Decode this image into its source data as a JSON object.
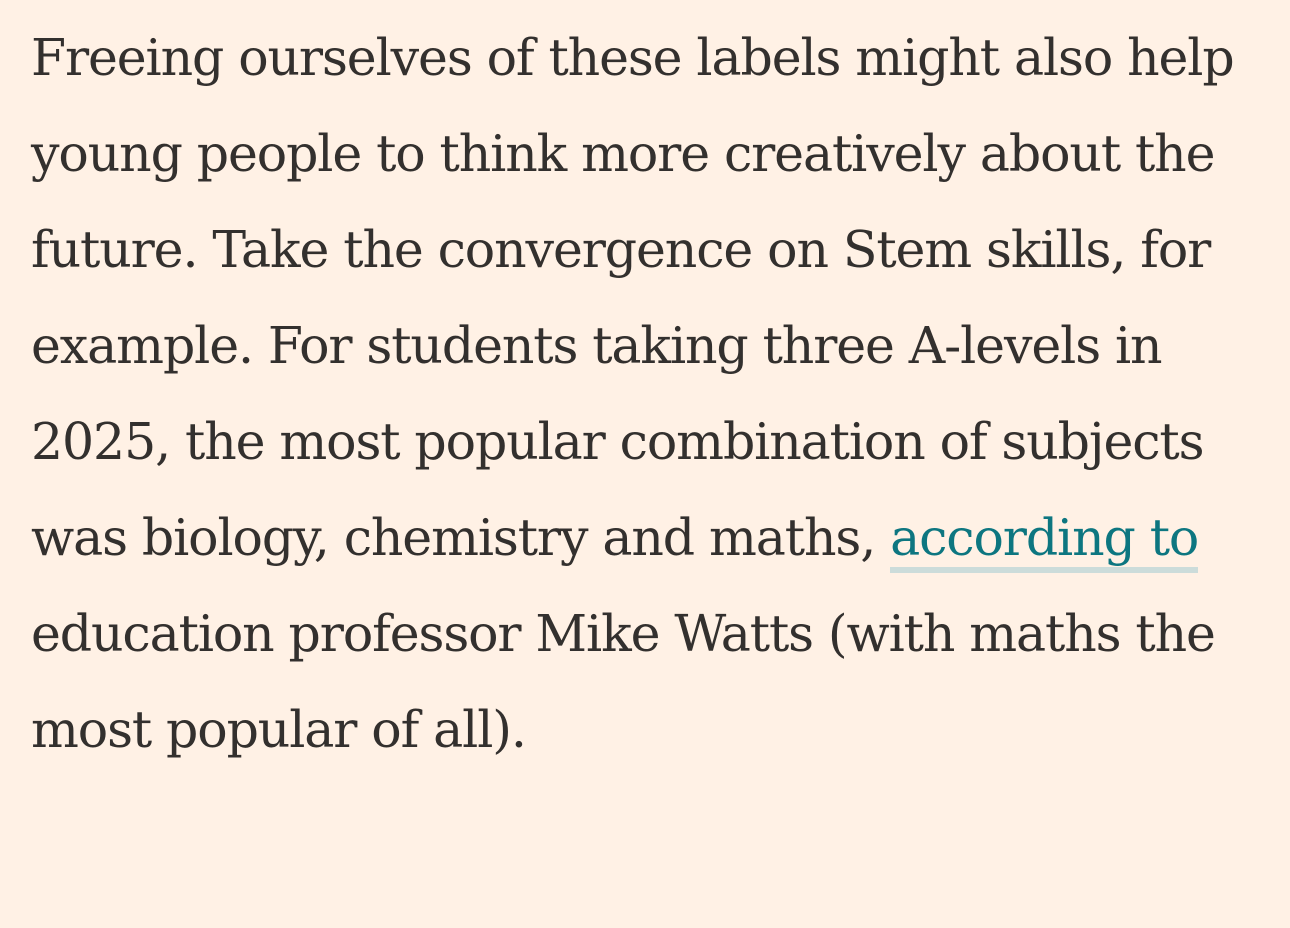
{
  "article": {
    "paragraph": {
      "text_before_link": "Freeing ourselves of these labels might also help young people to think more creatively about the future. Take the convergence on Stem skills, for example. For students taking three A-levels in 2025, the most popular combination of subjects was biology, chemistry and maths, ",
      "link_text": "according to",
      "text_after_link": " education professor Mike Watts (with maths the most popular of all)."
    },
    "colors": {
      "background": "#fff1e5",
      "text": "#33302e",
      "link": "#0d7680",
      "link_underline": "#ccdcda"
    }
  }
}
